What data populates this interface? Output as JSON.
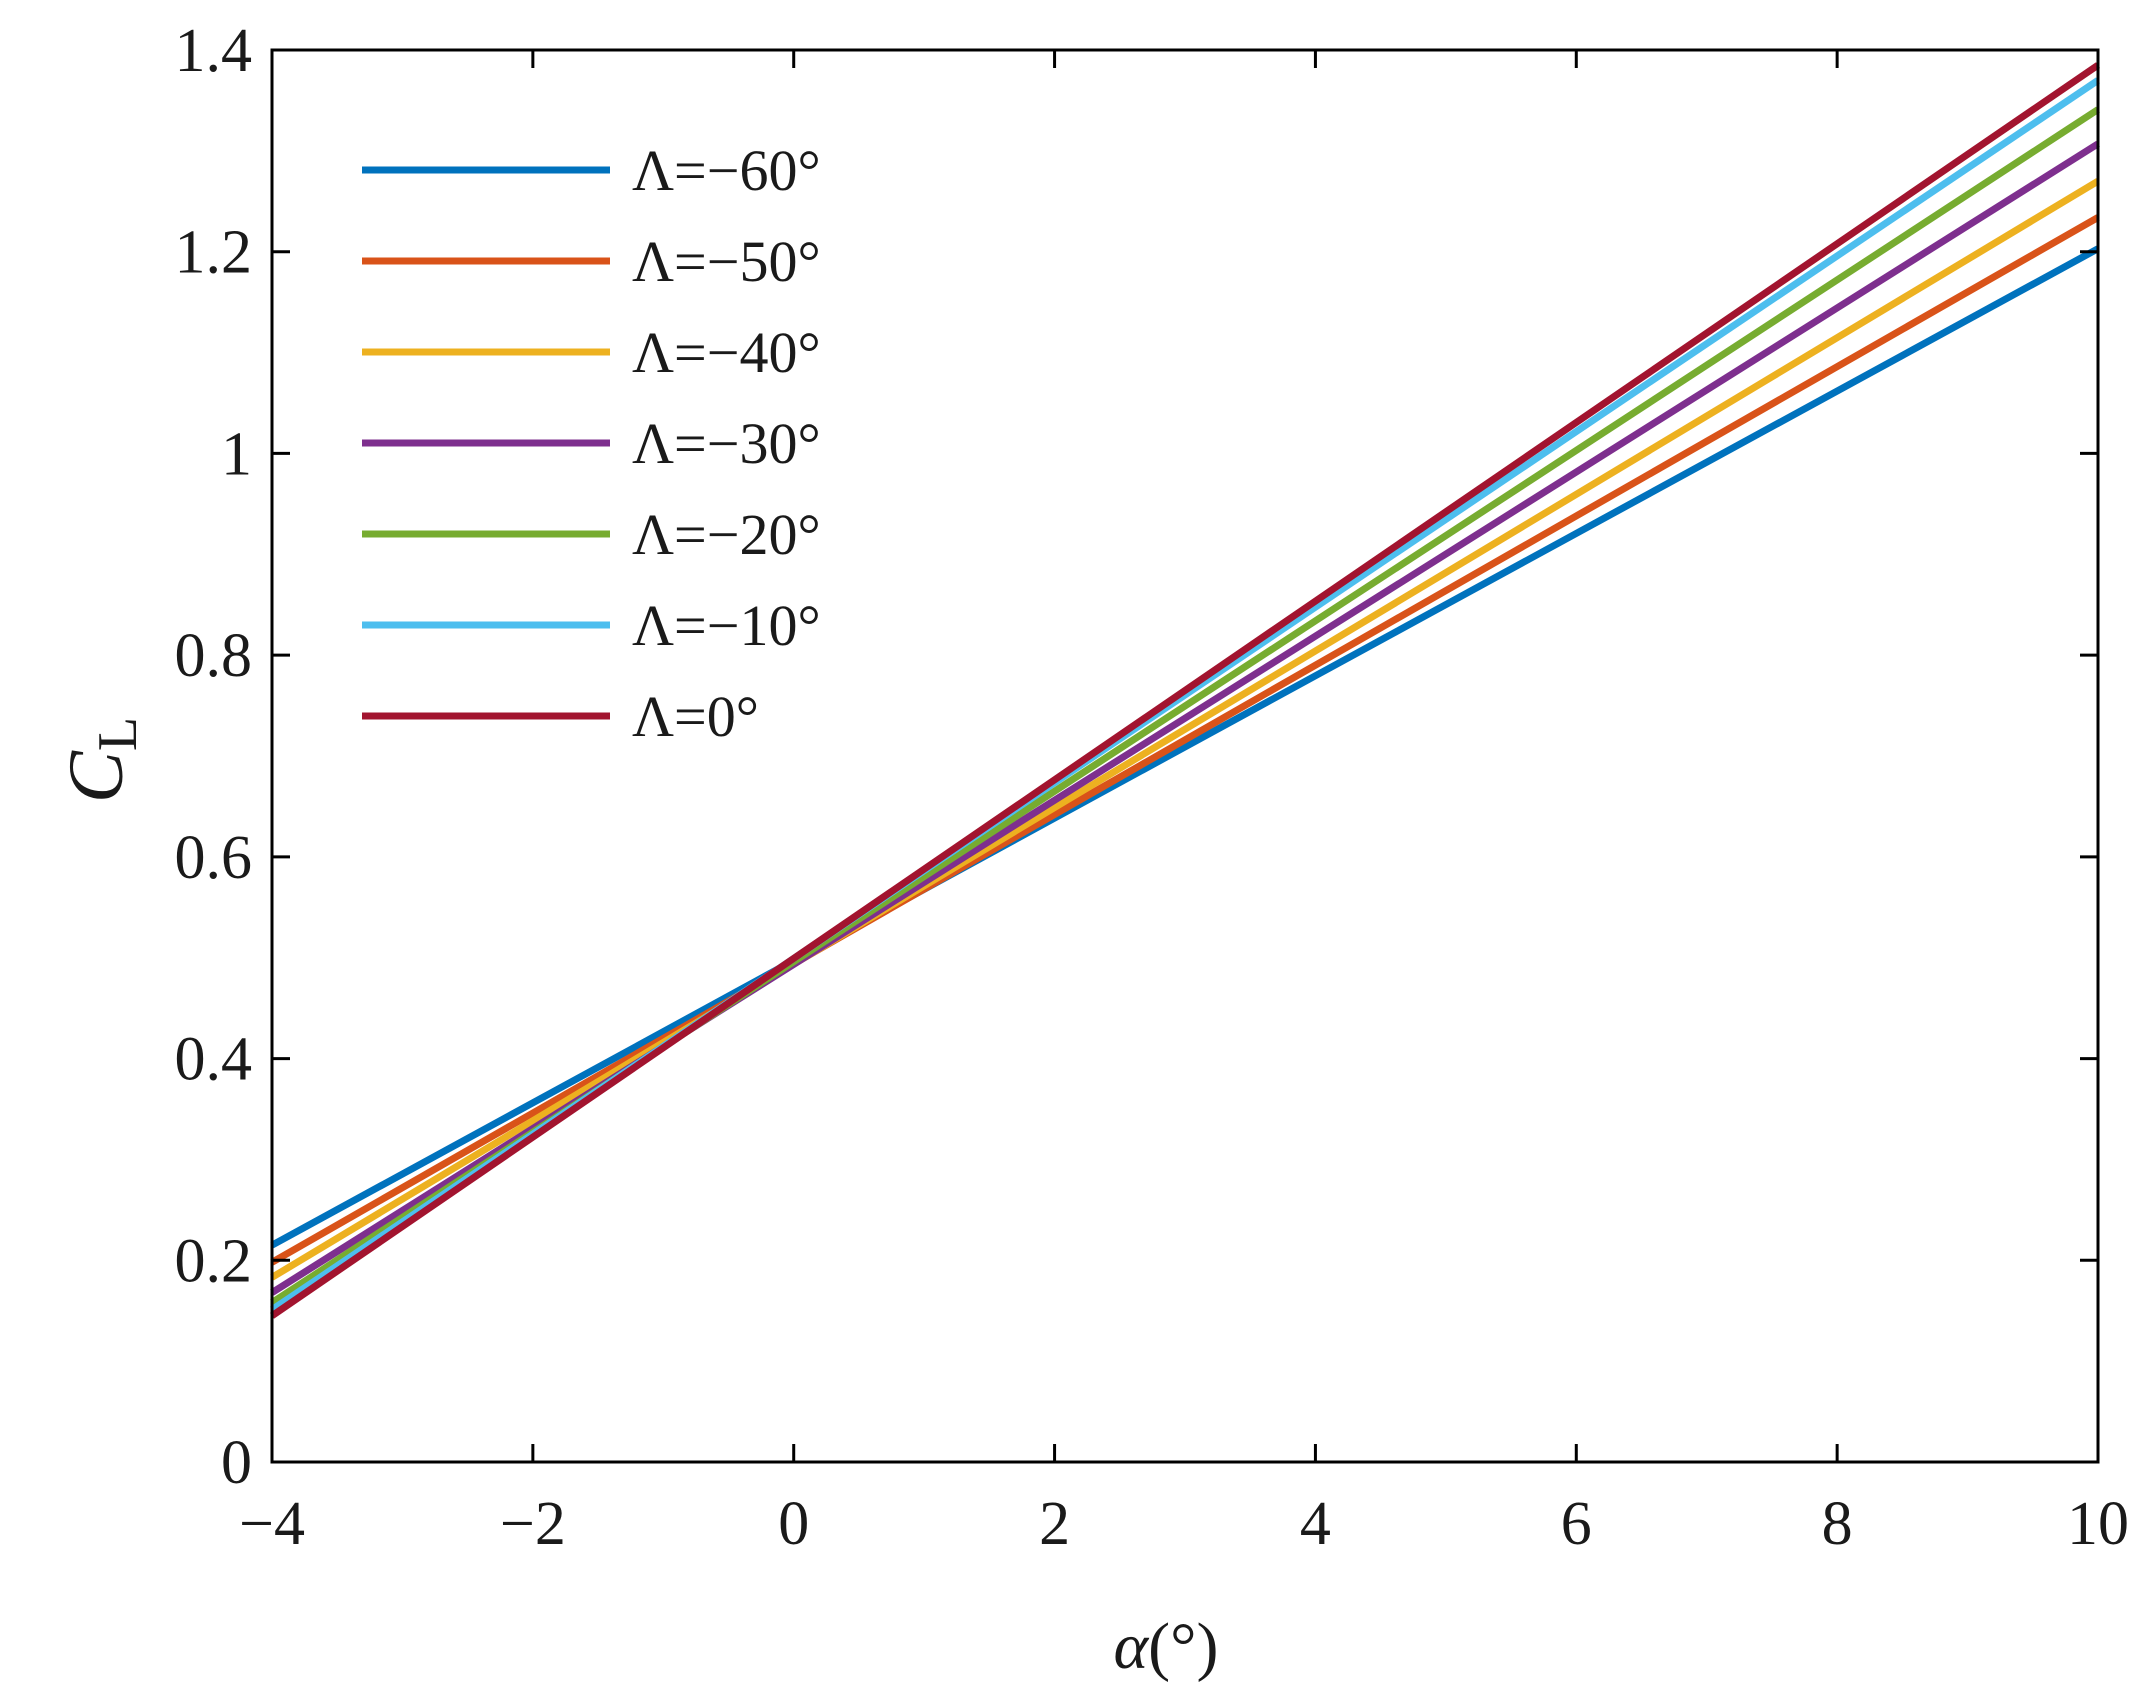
{
  "chart_data": {
    "type": "line",
    "xlabel": {
      "symbol": "α",
      "unit": "(°)"
    },
    "ylabel": {
      "main": "C",
      "sub": "L"
    },
    "xlim": [
      -4,
      10
    ],
    "ylim": [
      0,
      1.4
    ],
    "xticks": [
      -4,
      -2,
      0,
      2,
      4,
      6,
      8,
      10
    ],
    "xtick_labels": [
      "−4",
      "−2",
      "0",
      "2",
      "4",
      "6",
      "8",
      "10"
    ],
    "yticks": [
      0,
      0.2,
      0.4,
      0.6,
      0.8,
      1.0,
      1.2,
      1.4
    ],
    "ytick_labels": [
      "0",
      "0.2",
      "0.4",
      "0.6",
      "0.8",
      "1",
      "1.2",
      "1.4"
    ],
    "grid": false,
    "legend_position": "top-left",
    "series": [
      {
        "name": "Λ=−60°",
        "color": "#0072BD",
        "x": [
          -4,
          10
        ],
        "y": [
          0.215,
          1.203
        ]
      },
      {
        "name": "Λ=−50°",
        "color": "#D95319",
        "x": [
          -4,
          10
        ],
        "y": [
          0.198,
          1.234
        ]
      },
      {
        "name": "Λ=−40°",
        "color": "#EDB120",
        "x": [
          -4,
          10
        ],
        "y": [
          0.183,
          1.27
        ]
      },
      {
        "name": "Λ=−30°",
        "color": "#7E2F8E",
        "x": [
          -4,
          10
        ],
        "y": [
          0.168,
          1.307
        ]
      },
      {
        "name": "Λ=−20°",
        "color": "#77AC30",
        "x": [
          -4,
          10
        ],
        "y": [
          0.158,
          1.341
        ]
      },
      {
        "name": "Λ=−10°",
        "color": "#4DBEEE",
        "x": [
          -4,
          10
        ],
        "y": [
          0.151,
          1.37
        ]
      },
      {
        "name": "Λ=0°",
        "color": "#A2142F",
        "x": [
          -4,
          10
        ],
        "y": [
          0.145,
          1.385
        ]
      }
    ]
  }
}
